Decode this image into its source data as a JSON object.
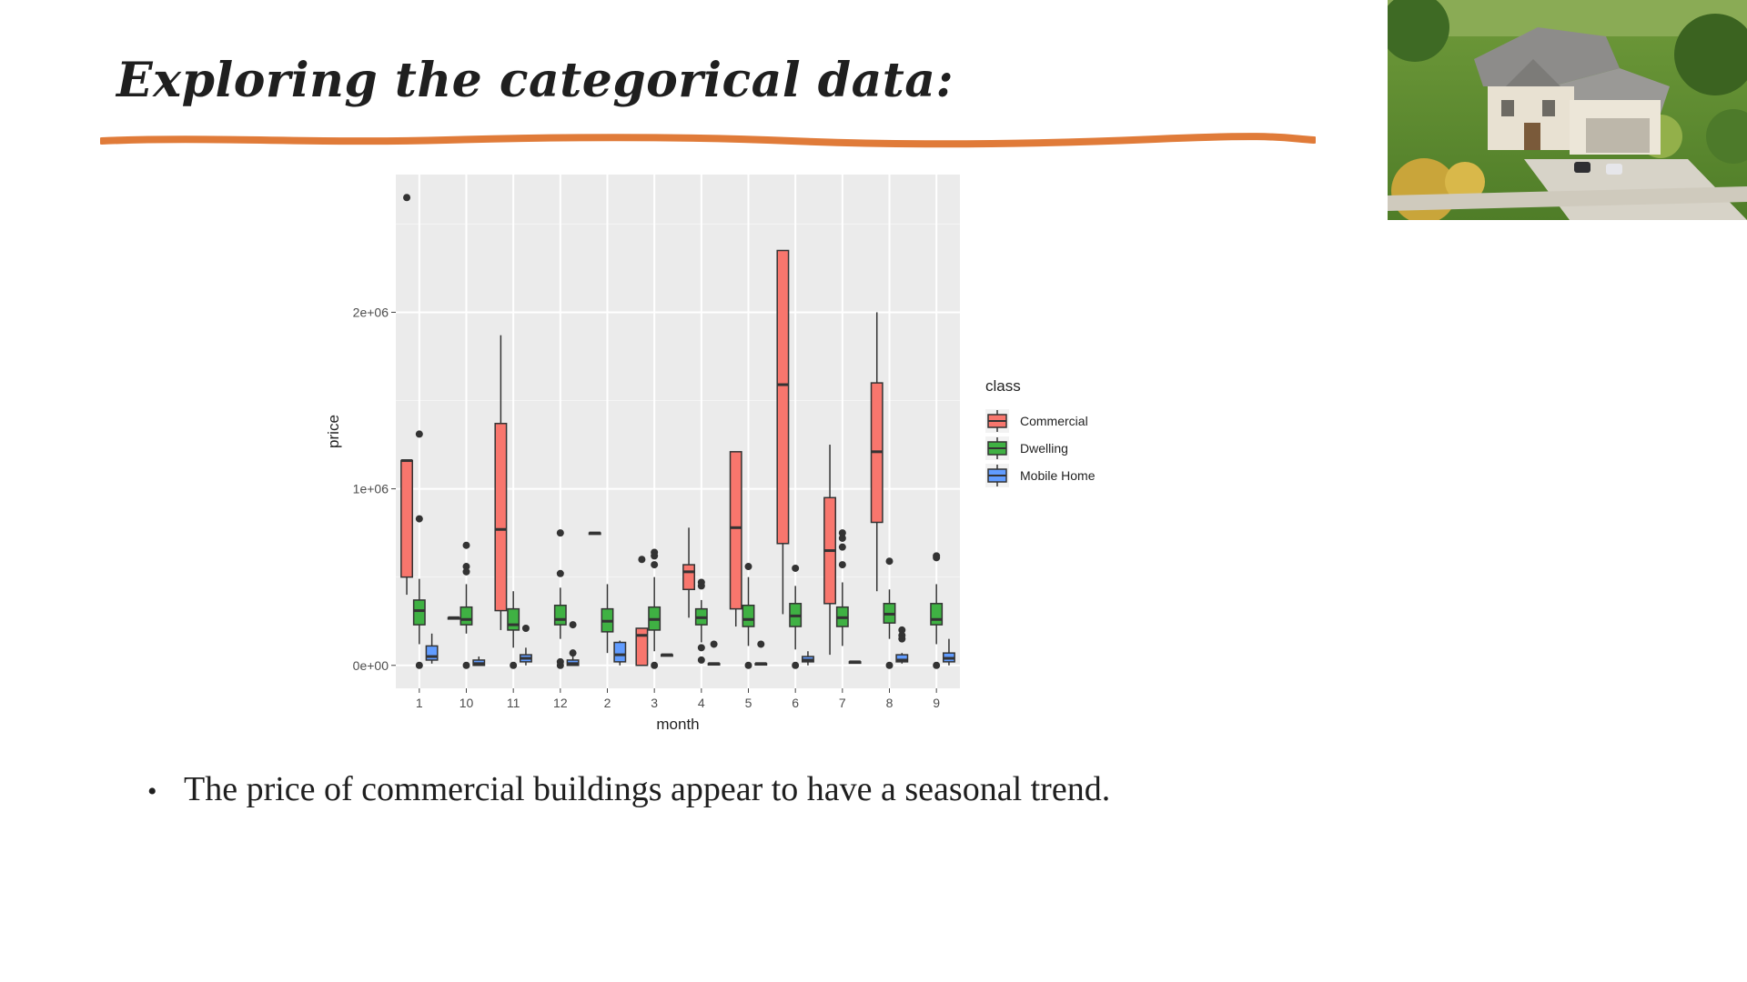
{
  "slide": {
    "title": "Exploring the categorical data:",
    "bullet": "The price of commercial buildings appear to have a seasonal trend.",
    "underline_color": "#e07b39",
    "photo": "house-photo"
  },
  "chart_data": {
    "type": "boxplot",
    "title": "",
    "xlabel": "month",
    "ylabel": "price",
    "categories": [
      "1",
      "10",
      "11",
      "12",
      "2",
      "3",
      "4",
      "5",
      "6",
      "7",
      "8",
      "9"
    ],
    "ylim": [
      -130000,
      2780000
    ],
    "yticks": [
      0,
      1000000,
      2000000
    ],
    "ytick_labels": [
      "0e+00",
      "1e+06",
      "2e+06"
    ],
    "grid": true,
    "background": "#ebebeb",
    "legend": {
      "title": "class",
      "position": "right",
      "entries": [
        {
          "name": "Commercial",
          "color": "#f8766d"
        },
        {
          "name": "Dwelling",
          "color": "#3fb143"
        },
        {
          "name": "Mobile Home",
          "color": "#619cff"
        }
      ]
    },
    "series": [
      {
        "name": "Commercial",
        "color": "#f8766d",
        "boxes": [
          {
            "month": "1",
            "low": 400000,
            "q1": 500000,
            "median": 1160000,
            "q3": 1160000,
            "high": 1160000,
            "outliers": [
              2650000
            ]
          },
          {
            "month": "10",
            "low": 270000,
            "q1": 270000,
            "median": 270000,
            "q3": 270000,
            "high": 270000,
            "outliers": []
          },
          {
            "month": "11",
            "low": 200000,
            "q1": 310000,
            "median": 770000,
            "q3": 1370000,
            "high": 1870000,
            "outliers": []
          },
          {
            "month": "2",
            "low": 750000,
            "q1": 750000,
            "median": 750000,
            "q3": 750000,
            "high": 750000,
            "outliers": []
          },
          {
            "month": "3",
            "low": 0,
            "q1": 0,
            "median": 170000,
            "q3": 210000,
            "high": 210000,
            "outliers": [
              600000
            ]
          },
          {
            "month": "4",
            "low": 270000,
            "q1": 430000,
            "median": 530000,
            "q3": 570000,
            "high": 780000,
            "outliers": []
          },
          {
            "month": "5",
            "low": 220000,
            "q1": 320000,
            "median": 780000,
            "q3": 1210000,
            "high": 1210000,
            "outliers": []
          },
          {
            "month": "6",
            "low": 290000,
            "q1": 690000,
            "median": 1590000,
            "q3": 2350000,
            "high": 2350000,
            "outliers": []
          },
          {
            "month": "7",
            "low": 60000,
            "q1": 350000,
            "median": 650000,
            "q3": 950000,
            "high": 1250000,
            "outliers": []
          },
          {
            "month": "8",
            "low": 420000,
            "q1": 810000,
            "median": 1210000,
            "q3": 1600000,
            "high": 2000000,
            "outliers": []
          }
        ]
      },
      {
        "name": "Dwelling",
        "color": "#3fb143",
        "boxes": [
          {
            "month": "1",
            "low": 120000,
            "q1": 230000,
            "median": 310000,
            "q3": 370000,
            "high": 490000,
            "outliers": [
              1310000,
              830000,
              0
            ]
          },
          {
            "month": "10",
            "low": 180000,
            "q1": 230000,
            "median": 260000,
            "q3": 330000,
            "high": 460000,
            "outliers": [
              680000,
              560000,
              530000,
              0
            ]
          },
          {
            "month": "11",
            "low": 100000,
            "q1": 200000,
            "median": 230000,
            "q3": 320000,
            "high": 420000,
            "outliers": [
              0
            ]
          },
          {
            "month": "12",
            "low": 150000,
            "q1": 230000,
            "median": 260000,
            "q3": 340000,
            "high": 440000,
            "outliers": [
              750000,
              520000,
              20000,
              0
            ]
          },
          {
            "month": "2",
            "low": 70000,
            "q1": 190000,
            "median": 250000,
            "q3": 320000,
            "high": 460000,
            "outliers": []
          },
          {
            "month": "3",
            "low": 80000,
            "q1": 200000,
            "median": 260000,
            "q3": 330000,
            "high": 500000,
            "outliers": [
              640000,
              620000,
              570000,
              0
            ]
          },
          {
            "month": "4",
            "low": 130000,
            "q1": 230000,
            "median": 270000,
            "q3": 320000,
            "high": 370000,
            "outliers": [
              470000,
              450000,
              100000,
              30000
            ]
          },
          {
            "month": "5",
            "low": 110000,
            "q1": 220000,
            "median": 260000,
            "q3": 340000,
            "high": 500000,
            "outliers": [
              560000,
              0
            ]
          },
          {
            "month": "6",
            "low": 90000,
            "q1": 220000,
            "median": 280000,
            "q3": 350000,
            "high": 450000,
            "outliers": [
              550000,
              0
            ]
          },
          {
            "month": "7",
            "low": 110000,
            "q1": 220000,
            "median": 270000,
            "q3": 330000,
            "high": 470000,
            "outliers": [
              750000,
              720000,
              670000,
              570000
            ]
          },
          {
            "month": "8",
            "low": 150000,
            "q1": 240000,
            "median": 290000,
            "q3": 350000,
            "high": 430000,
            "outliers": [
              590000,
              0
            ]
          },
          {
            "month": "9",
            "low": 120000,
            "q1": 230000,
            "median": 260000,
            "q3": 350000,
            "high": 460000,
            "outliers": [
              620000,
              610000,
              0
            ]
          }
        ]
      },
      {
        "name": "Mobile Home",
        "color": "#619cff",
        "boxes": [
          {
            "month": "1",
            "low": 10000,
            "q1": 30000,
            "median": 50000,
            "q3": 110000,
            "high": 180000,
            "outliers": []
          },
          {
            "month": "10",
            "low": 0,
            "q1": 0,
            "median": 10000,
            "q3": 30000,
            "high": 50000,
            "outliers": []
          },
          {
            "month": "11",
            "low": 0,
            "q1": 20000,
            "median": 40000,
            "q3": 60000,
            "high": 100000,
            "outliers": [
              210000
            ]
          },
          {
            "month": "12",
            "low": 0,
            "q1": 0,
            "median": 10000,
            "q3": 30000,
            "high": 50000,
            "outliers": [
              230000,
              70000
            ]
          },
          {
            "month": "2",
            "low": 0,
            "q1": 20000,
            "median": 60000,
            "q3": 130000,
            "high": 140000,
            "outliers": []
          },
          {
            "month": "3",
            "low": 60000,
            "q1": 60000,
            "median": 60000,
            "q3": 60000,
            "high": 60000,
            "outliers": []
          },
          {
            "month": "4",
            "low": 10000,
            "q1": 10000,
            "median": 10000,
            "q3": 10000,
            "high": 10000,
            "outliers": [
              120000
            ]
          },
          {
            "month": "5",
            "low": 10000,
            "q1": 10000,
            "median": 10000,
            "q3": 10000,
            "high": 10000,
            "outliers": [
              120000
            ]
          },
          {
            "month": "6",
            "low": 0,
            "q1": 20000,
            "median": 30000,
            "q3": 50000,
            "high": 80000,
            "outliers": []
          },
          {
            "month": "7",
            "low": 20000,
            "q1": 20000,
            "median": 20000,
            "q3": 20000,
            "high": 20000,
            "outliers": []
          },
          {
            "month": "8",
            "low": 10000,
            "q1": 20000,
            "median": 30000,
            "q3": 60000,
            "high": 70000,
            "outliers": [
              200000,
              170000,
              150000
            ]
          },
          {
            "month": "9",
            "low": 0,
            "q1": 20000,
            "median": 40000,
            "q3": 70000,
            "high": 150000,
            "outliers": []
          }
        ]
      }
    ]
  }
}
